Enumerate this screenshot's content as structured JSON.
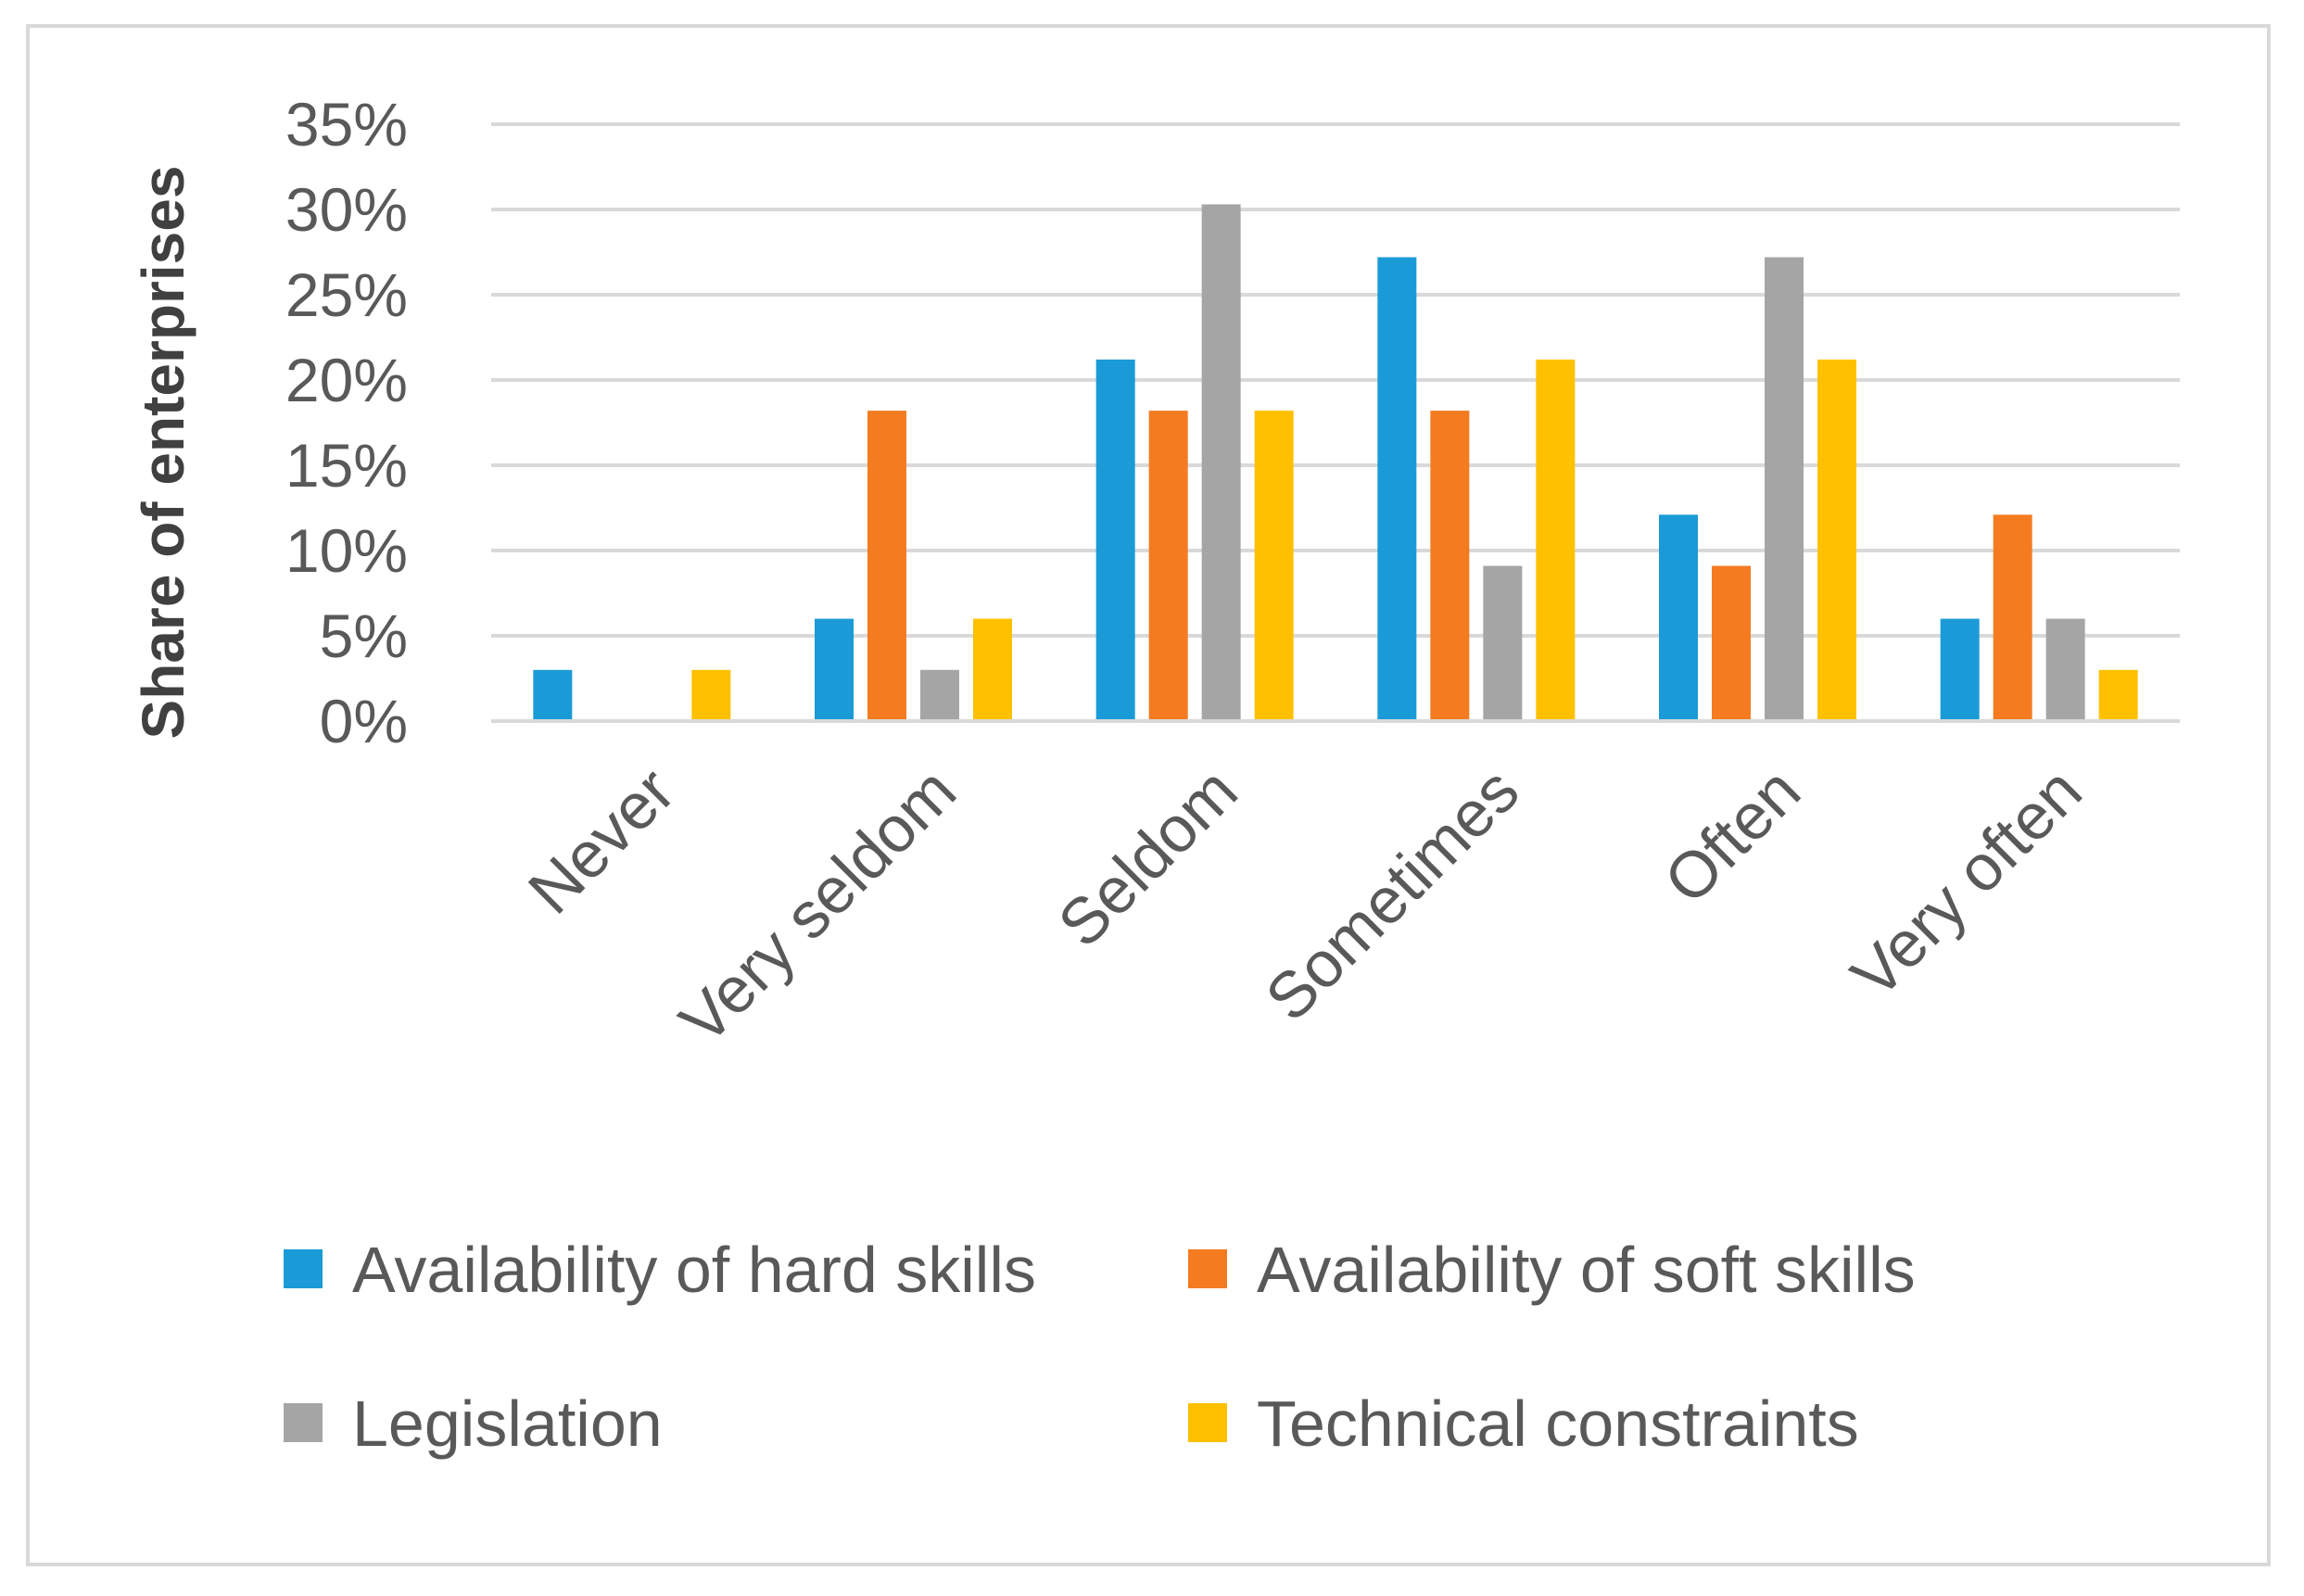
{
  "chart_data": {
    "type": "bar",
    "title": "",
    "xlabel": "",
    "ylabel": "Share of enterprises",
    "ylim": [
      0,
      35
    ],
    "yticks": [
      "0%",
      "5%",
      "10%",
      "15%",
      "20%",
      "25%",
      "30%",
      "35%"
    ],
    "grid": true,
    "legend_position": "bottom",
    "categories": [
      "Never",
      "Very seldom",
      "Seldom",
      "Sometimes",
      "Often",
      "Very often"
    ],
    "series": [
      {
        "name": "Availability of hard skills",
        "color": "#1a9bd7",
        "values": [
          3,
          6,
          21.2,
          27.2,
          12.1,
          6
        ]
      },
      {
        "name": "Availability of soft skills",
        "color": "#f47b20",
        "values": [
          0,
          18.2,
          18.2,
          18.2,
          9.1,
          12.1
        ]
      },
      {
        "name": "Legislation",
        "color": "#a5a5a5",
        "values": [
          0,
          3,
          30.3,
          9.1,
          27.2,
          6
        ]
      },
      {
        "name": "Technical constraints",
        "color": "#ffc000",
        "values": [
          3,
          6,
          18.2,
          21.2,
          21.2,
          3
        ]
      }
    ]
  }
}
